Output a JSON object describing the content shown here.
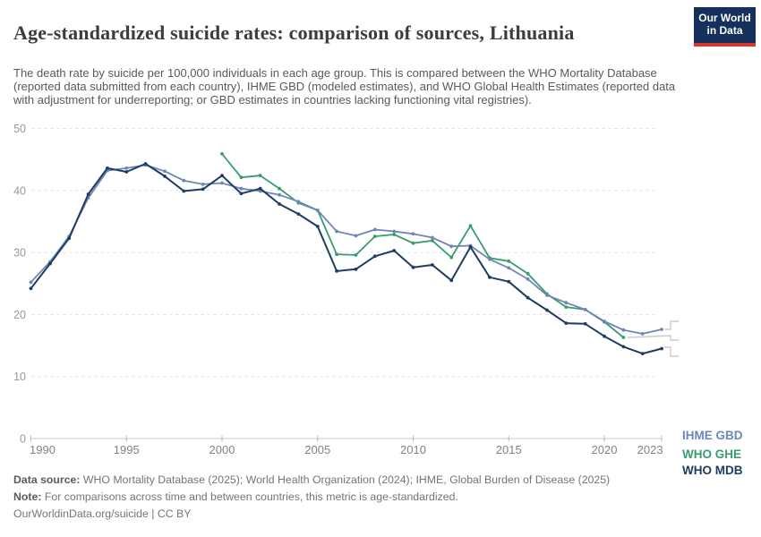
{
  "header": {
    "title": "Age-standardized suicide rates: comparison of sources, Lithuania",
    "subtitle": "The death rate by suicide per 100,000 individuals in each age group. This is compared between the WHO Mortality Database (reported data submitted from each country), IHME GBD (modeled estimates), and WHO Global Health Estimates (reported data with adjustment for underreporting; or GBD estimates in countries lacking functioning vital registries).",
    "logo": {
      "line1": "Our World",
      "line2": "in Data"
    }
  },
  "chart_data": {
    "type": "line",
    "title": "Age-standardized suicide rates: comparison of sources, Lithuania",
    "xlabel": "",
    "ylabel": "Death rate by suicide per 100,000 individuals",
    "x": [
      1990,
      1991,
      1992,
      1993,
      1994,
      1995,
      1996,
      1997,
      1998,
      1999,
      2000,
      2001,
      2002,
      2003,
      2004,
      2005,
      2006,
      2007,
      2008,
      2009,
      2010,
      2011,
      2012,
      2013,
      2014,
      2015,
      2016,
      2017,
      2018,
      2019,
      2020,
      2021,
      2022,
      2023
    ],
    "series": [
      {
        "name": "IHME GBD",
        "color": "#6e86b6",
        "values": [
          25.2,
          28.5,
          32.6,
          38.8,
          43.2,
          43.6,
          44.1,
          43.1,
          41.6,
          41.0,
          41.2,
          40.3,
          39.9,
          39.3,
          38.2,
          36.8,
          33.4,
          32.7,
          33.7,
          33.4,
          33.0,
          32.4,
          31.0,
          31.1,
          28.9,
          27.5,
          25.7,
          23.1,
          21.9,
          20.8,
          18.9,
          17.5,
          16.9,
          17.6
        ]
      },
      {
        "name": "WHO GHE",
        "color": "#3a9c6e",
        "values": [
          null,
          null,
          null,
          null,
          null,
          null,
          null,
          null,
          null,
          null,
          45.9,
          42.1,
          42.4,
          40.3,
          38.0,
          36.8,
          29.7,
          29.6,
          32.6,
          32.9,
          31.5,
          31.9,
          29.2,
          34.3,
          29.1,
          28.6,
          26.6,
          23.3,
          21.2,
          20.8,
          18.8,
          16.3,
          null,
          null
        ]
      },
      {
        "name": "WHO MDB",
        "color": "#1d3d63",
        "values": [
          24.2,
          28.2,
          32.3,
          39.4,
          43.6,
          43.0,
          44.3,
          42.3,
          39.9,
          40.2,
          42.4,
          39.5,
          40.3,
          37.8,
          36.2,
          34.2,
          27.0,
          27.3,
          29.4,
          30.3,
          27.6,
          28.0,
          25.5,
          30.9,
          26.0,
          25.3,
          22.7,
          20.7,
          18.6,
          18.5,
          16.5,
          14.8,
          13.7,
          14.5
        ]
      }
    ],
    "ylim": [
      0,
      50
    ],
    "yticks": [
      0,
      10,
      20,
      30,
      40,
      50
    ],
    "xticks": [
      1990,
      1995,
      2000,
      2005,
      2010,
      2015,
      2020,
      2023
    ],
    "grid": "horizontal-dashed",
    "legend_position": "right-of-line-ends"
  },
  "legend": {
    "items": [
      {
        "label": "IHME GBD",
        "color": "#6e86b6"
      },
      {
        "label": "WHO GHE",
        "color": "#3a9c6e"
      },
      {
        "label": "WHO MDB",
        "color": "#1d3d63"
      }
    ]
  },
  "footer": {
    "data_source_label": "Data source:",
    "data_source": "WHO Mortality Database (2025); World Health Organization (2024); IHME, Global Burden of Disease (2025)",
    "note_label": "Note:",
    "note": "For comparisons across time and between countries, this metric is age-standardized.",
    "url": "OurWorldinData.org/suicide",
    "license": "| CC BY"
  }
}
